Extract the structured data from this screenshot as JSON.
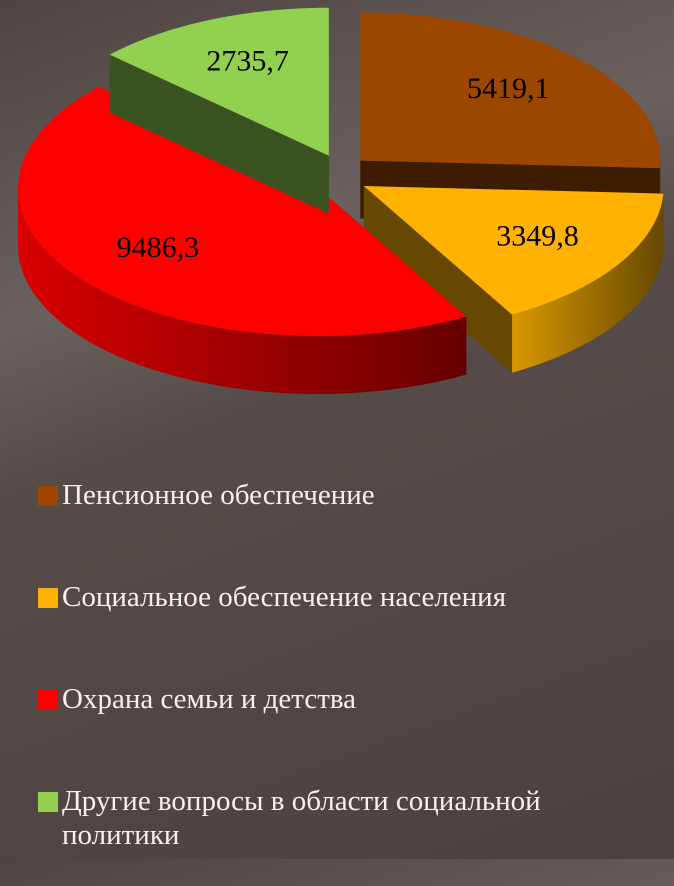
{
  "chart_data": {
    "type": "pie",
    "style": "3d-exploded",
    "categories": [
      "Пенсионное обеспечение",
      "Социальное обеспечение населения",
      "Охрана семьи и детства",
      "Другие вопросы в области социальной политики"
    ],
    "values": [
      5419.1,
      3349.8,
      9486.3,
      2735.7
    ],
    "value_labels": [
      "5419,1",
      "3349,8",
      "9486,3",
      "2735,7"
    ],
    "colors": [
      "#9c4700",
      "#ffb300",
      "#ff0000",
      "#92d050"
    ],
    "legend": "bottom"
  }
}
